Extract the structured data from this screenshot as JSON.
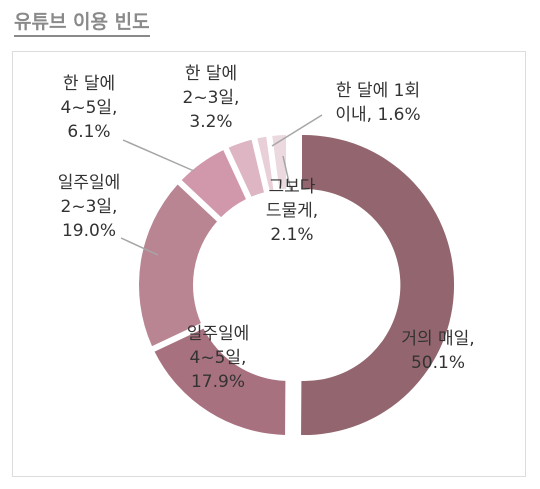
{
  "title": "유튜브 이용 빈도",
  "chart_data": {
    "type": "pie",
    "title": "유튜브 이용 빈도",
    "donut": true,
    "slices": [
      {
        "label": "거의 매일",
        "value": 50.1,
        "color": "#93666f",
        "label_lines": [
          "거의 매일,",
          "50.1%"
        ]
      },
      {
        "label": "일주일에 4~5일",
        "value": 17.9,
        "color": "#a8717f",
        "label_lines": [
          "일주일에",
          "4~5일,",
          "17.9%"
        ]
      },
      {
        "label": "일주일에 2~3일",
        "value": 19.0,
        "color": "#b98593",
        "label_lines": [
          "일주일에",
          "2~3일,",
          "19.0%"
        ]
      },
      {
        "label": "한 달에 4~5일",
        "value": 6.1,
        "color": "#d198ab",
        "label_lines": [
          "한 달에",
          "4~5일,",
          "6.1%"
        ]
      },
      {
        "label": "한 달에 2~3일",
        "value": 3.2,
        "color": "#ddb5c3",
        "label_lines": [
          "한 달에",
          "2~3일,",
          "3.2%"
        ]
      },
      {
        "label": "한 달에 1회 이내",
        "value": 1.6,
        "color": "#e8cfd8",
        "label_lines": [
          "한 달에 1회",
          "이내, 1.6%"
        ]
      },
      {
        "label": "그보다 드물게",
        "value": 2.1,
        "color": "#ecd9df",
        "label_lines": [
          "그보다",
          "드물게,",
          "2.1%"
        ]
      }
    ]
  }
}
